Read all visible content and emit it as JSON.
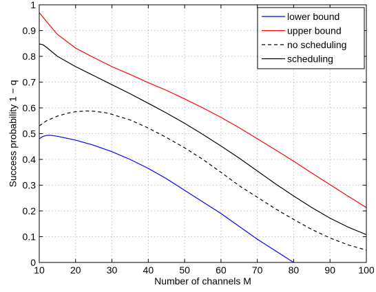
{
  "chart_data": {
    "type": "line",
    "xlabel": "Number of channels M",
    "ylabel": "Success probability 1 − q",
    "xlim": [
      10,
      100
    ],
    "ylim": [
      0,
      1
    ],
    "xticks": [
      "10",
      "20",
      "30",
      "40",
      "50",
      "60",
      "70",
      "80",
      "90",
      "100"
    ],
    "yticks": [
      "0",
      "0.1",
      "0.2",
      "0.3",
      "0.4",
      "0.5",
      "0.6",
      "0.7",
      "0.8",
      "0.9",
      "1"
    ],
    "grid": true,
    "legend_position": "top-right",
    "series": [
      {
        "name": "lower bound",
        "color": "#0000ff",
        "dash": "solid",
        "x": [
          10,
          11,
          12,
          13,
          15,
          20,
          25,
          30,
          35,
          40,
          45,
          50,
          55,
          60,
          65,
          70,
          75,
          80
        ],
        "y": [
          0.48,
          0.489,
          0.493,
          0.494,
          0.49,
          0.475,
          0.455,
          0.43,
          0.4,
          0.365,
          0.325,
          0.28,
          0.235,
          0.19,
          0.14,
          0.09,
          0.045,
          0.0
        ]
      },
      {
        "name": "upper bound",
        "color": "#ff0000",
        "dash": "solid",
        "x": [
          10,
          12,
          15,
          20,
          25,
          30,
          35,
          40,
          45,
          50,
          55,
          60,
          65,
          70,
          75,
          80,
          85,
          90,
          95,
          100
        ],
        "y": [
          0.97,
          0.935,
          0.885,
          0.832,
          0.795,
          0.76,
          0.73,
          0.698,
          0.668,
          0.635,
          0.6,
          0.563,
          0.523,
          0.48,
          0.437,
          0.393,
          0.347,
          0.302,
          0.257,
          0.213
        ]
      },
      {
        "name": "no scheduling",
        "color": "#000000",
        "dash": "dashed",
        "x": [
          10,
          12,
          15,
          18,
          20,
          23,
          25,
          28,
          30,
          35,
          40,
          45,
          50,
          55,
          60,
          65,
          70,
          75,
          80,
          85,
          90,
          95,
          100
        ],
        "y": [
          0.53,
          0.55,
          0.568,
          0.58,
          0.585,
          0.588,
          0.587,
          0.582,
          0.575,
          0.553,
          0.522,
          0.485,
          0.445,
          0.4,
          0.35,
          0.298,
          0.253,
          0.208,
          0.167,
          0.128,
          0.095,
          0.068,
          0.048
        ]
      },
      {
        "name": "scheduling",
        "color": "#000000",
        "dash": "solid",
        "x": [
          10,
          11,
          12,
          15,
          20,
          25,
          30,
          35,
          40,
          45,
          50,
          55,
          60,
          65,
          70,
          75,
          80,
          85,
          90,
          95,
          100
        ],
        "y": [
          0.848,
          0.845,
          0.835,
          0.8,
          0.76,
          0.725,
          0.69,
          0.655,
          0.618,
          0.58,
          0.54,
          0.497,
          0.452,
          0.405,
          0.355,
          0.305,
          0.258,
          0.213,
          0.172,
          0.137,
          0.108
        ]
      }
    ]
  }
}
